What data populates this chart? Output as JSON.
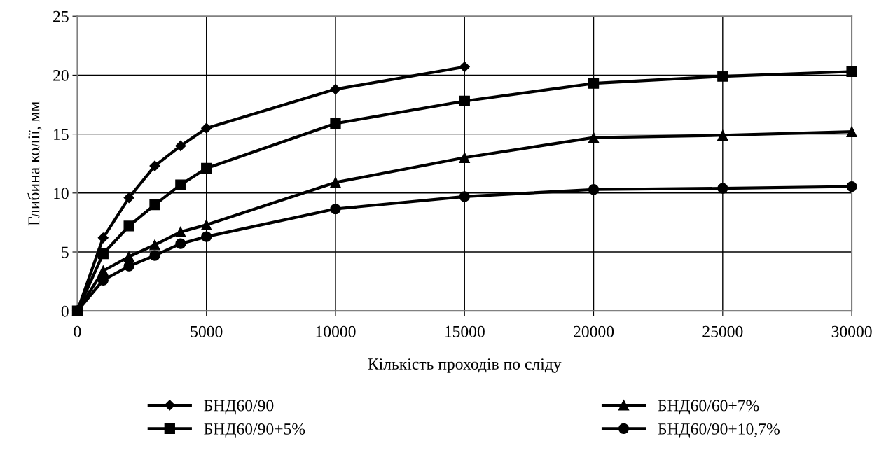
{
  "chart_data": {
    "type": "line",
    "xlabel": "Кількість проходів по сліду",
    "ylabel": "Глибина колії, мм",
    "xlim": [
      0,
      30000
    ],
    "xticks": [
      0,
      5000,
      10000,
      15000,
      20000,
      25000,
      30000
    ],
    "ylim": [
      0,
      25
    ],
    "yticks": [
      0,
      5,
      10,
      15,
      20,
      25
    ],
    "grid": true,
    "legend": "bottom",
    "line_style": "solid",
    "series": [
      {
        "name": "БНД60/90",
        "color": "#000000",
        "marker": "diamond",
        "x": [
          0,
          1000,
          2000,
          3000,
          4000,
          5000,
          10000,
          15000
        ],
        "values": [
          0,
          6.2,
          9.6,
          12.3,
          14.0,
          15.5,
          18.8,
          20.7
        ]
      },
      {
        "name": "БНД60/90+5%",
        "color": "#000000",
        "marker": "square",
        "x": [
          0,
          1000,
          2000,
          3000,
          4000,
          5000,
          10000,
          15000,
          20000,
          25000,
          30000
        ],
        "values": [
          0,
          4.85,
          7.2,
          9.0,
          10.7,
          12.1,
          15.9,
          17.8,
          19.3,
          19.9,
          20.3
        ]
      },
      {
        "name": "БНД60/60+7%",
        "color": "#000000",
        "marker": "triangle",
        "x": [
          0,
          1000,
          2000,
          3000,
          4000,
          5000,
          10000,
          15000,
          20000,
          25000,
          30000
        ],
        "values": [
          0,
          3.4,
          4.6,
          5.6,
          6.7,
          7.3,
          10.9,
          13.0,
          14.7,
          14.9,
          15.2
        ]
      },
      {
        "name": "БНД60/90+10,7%",
        "color": "#000000",
        "marker": "circle",
        "x": [
          0,
          1000,
          2000,
          3000,
          4000,
          5000,
          10000,
          15000,
          20000,
          25000,
          30000
        ],
        "values": [
          0,
          2.6,
          3.8,
          4.7,
          5.7,
          6.3,
          8.65,
          9.7,
          10.3,
          10.4,
          10.55
        ]
      }
    ]
  }
}
